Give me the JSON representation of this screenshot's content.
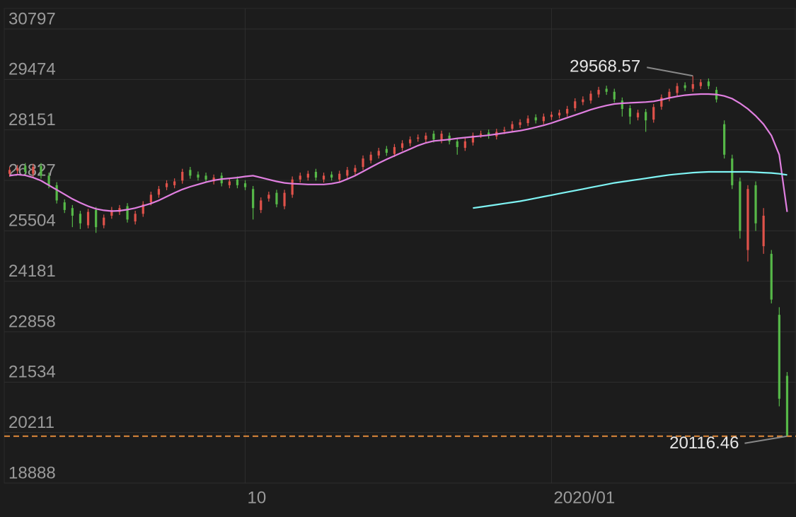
{
  "chart_data": {
    "type": "candlestick",
    "categories": [
      null,
      null,
      null,
      null,
      null,
      null,
      null,
      null,
      null,
      null,
      null,
      null,
      null,
      null,
      null,
      null,
      null,
      null,
      null,
      null,
      null,
      null,
      null,
      null,
      null,
      null,
      null,
      null,
      null,
      null,
      "10",
      null,
      null,
      null,
      null,
      null,
      null,
      null,
      null,
      null,
      null,
      null,
      null,
      null,
      null,
      null,
      null,
      null,
      null,
      null,
      null,
      null,
      null,
      null,
      null,
      null,
      null,
      null,
      null,
      null,
      null,
      null,
      null,
      null,
      null,
      null,
      null,
      null,
      null,
      "2020/01",
      null,
      null,
      null,
      null,
      null,
      null,
      null,
      null,
      null,
      null,
      null,
      null,
      null,
      null,
      null,
      null,
      null,
      null,
      null,
      null,
      null,
      null,
      null,
      null,
      null,
      null,
      null,
      null,
      null,
      null
    ],
    "open": [
      27000,
      27080,
      27200,
      27000,
      27200,
      26950,
      26700,
      26250,
      26100,
      25950,
      25650,
      26050,
      25650,
      25900,
      26000,
      26150,
      25750,
      25950,
      26250,
      26450,
      26650,
      26700,
      26820,
      27100,
      26980,
      26950,
      26800,
      26950,
      26700,
      26850,
      26750,
      26600,
      26050,
      26350,
      26500,
      26150,
      26450,
      26850,
      26900,
      27050,
      26850,
      26980,
      26850,
      26950,
      27050,
      27180,
      27350,
      27480,
      27650,
      27520,
      27680,
      27800,
      27920,
      27900,
      28050,
      27880,
      28000,
      27850,
      27680,
      27820,
      28020,
      28080,
      27980,
      28120,
      28180,
      28280,
      28330,
      28480,
      28380,
      28490,
      28530,
      28580,
      28720,
      28880,
      28920,
      29080,
      29230,
      29150,
      28920,
      28720,
      28480,
      28620,
      28420,
      28760,
      28980,
      29120,
      29320,
      29230,
      29300,
      29420,
      29200,
      28300,
      27400,
      26800,
      25000,
      26700,
      25100,
      24900,
      23300,
      21700
    ],
    "high": [
      27180,
      27230,
      27280,
      27260,
      27280,
      27030,
      26780,
      26330,
      26180,
      26030,
      26080,
      26130,
      25930,
      26130,
      26180,
      26230,
      26030,
      26280,
      26530,
      26680,
      26830,
      26880,
      27130,
      27180,
      27060,
      27030,
      26980,
      27030,
      26880,
      26930,
      26830,
      26680,
      26380,
      26530,
      26580,
      26580,
      26930,
      27030,
      27080,
      27130,
      27030,
      27060,
      27080,
      27180,
      27230,
      27480,
      27580,
      27680,
      27730,
      27780,
      27880,
      27980,
      28030,
      28080,
      28130,
      28130,
      28080,
      27930,
      27930,
      28080,
      28130,
      28160,
      28180,
      28230,
      28380,
      28430,
      28530,
      28560,
      28580,
      28630,
      28680,
      28780,
      28980,
      29030,
      29180,
      29280,
      29310,
      29230,
      29000,
      28800,
      28680,
      28700,
      28830,
      29080,
      29230,
      29380,
      29400,
      29568.57,
      29480,
      29500,
      29280,
      28400,
      27500,
      26900,
      26700,
      26800,
      26100,
      25000,
      23500,
      21800
    ],
    "low": [
      26920,
      27000,
      26970,
      26920,
      26870,
      26620,
      26220,
      25970,
      25600,
      25550,
      25570,
      25450,
      25570,
      25820,
      25920,
      25720,
      25670,
      25870,
      26170,
      26370,
      26570,
      26620,
      26740,
      26870,
      26820,
      26770,
      26720,
      26670,
      26620,
      26620,
      26570,
      25800,
      25970,
      26270,
      26120,
      26070,
      26370,
      26770,
      26820,
      26820,
      26770,
      26820,
      26770,
      26870,
      26970,
      27100,
      27270,
      27400,
      27470,
      27440,
      27600,
      27720,
      27840,
      27820,
      27820,
      27800,
      27770,
      27500,
      27600,
      27740,
      27940,
      27920,
      27900,
      28040,
      28100,
      28200,
      28250,
      28320,
      28300,
      28410,
      28450,
      28500,
      28640,
      28800,
      28840,
      29000,
      29070,
      28870,
      28500,
      28300,
      28400,
      28100,
      28340,
      28680,
      28900,
      29040,
      29170,
      29150,
      29220,
      29220,
      28870,
      27400,
      26600,
      25300,
      24700,
      25500,
      24900,
      23600,
      20900,
      20116.46
    ],
    "close": [
      27100,
      27150,
      27050,
      27180,
      26950,
      26700,
      26300,
      26050,
      25900,
      25700,
      26000,
      25600,
      25850,
      26050,
      26100,
      25800,
      25950,
      26200,
      26450,
      26600,
      26750,
      26800,
      27050,
      26950,
      26900,
      26850,
      26900,
      26750,
      26800,
      26700,
      26650,
      26100,
      26300,
      26450,
      26200,
      26500,
      26850,
      26950,
      27000,
      26900,
      26950,
      26900,
      27000,
      27100,
      27150,
      27400,
      27500,
      27600,
      27550,
      27700,
      27800,
      27900,
      27950,
      28000,
      27900,
      28050,
      27850,
      27700,
      27850,
      28000,
      28050,
      28000,
      28100,
      28150,
      28300,
      28350,
      28450,
      28400,
      28500,
      28550,
      28600,
      28700,
      28900,
      28950,
      29100,
      29200,
      29150,
      28950,
      28700,
      28500,
      28600,
      28400,
      28750,
      29000,
      29150,
      29300,
      29250,
      29350,
      29400,
      29300,
      28950,
      27500,
      26700,
      25500,
      26600,
      25700,
      25900,
      23700,
      21100,
      20116.46
    ],
    "up_color": "#e0524a",
    "down_color": "#56b848",
    "series": [
      {
        "color": "#e07fe0",
        "values": [
          26950,
          26980,
          26960,
          26900,
          26820,
          26700,
          26580,
          26460,
          26340,
          26240,
          26150,
          26080,
          26040,
          26020,
          26030,
          26060,
          26100,
          26160,
          26220,
          26300,
          26400,
          26500,
          26590,
          26660,
          26720,
          26780,
          26830,
          26860,
          26880,
          26900,
          26930,
          26950,
          26900,
          26850,
          26800,
          26760,
          26740,
          26730,
          26720,
          26720,
          26720,
          26740,
          26780,
          26860,
          26950,
          27060,
          27170,
          27280,
          27380,
          27470,
          27560,
          27650,
          27740,
          27810,
          27860,
          27880,
          27900,
          27930,
          27950,
          27970,
          27990,
          28010,
          28040,
          28070,
          28100,
          28130,
          28170,
          28220,
          28270,
          28330,
          28400,
          28470,
          28540,
          28610,
          28680,
          28740,
          28790,
          28830,
          28850,
          28860,
          28870,
          28880,
          28900,
          28940,
          28990,
          29030,
          29060,
          29080,
          29090,
          29090,
          29080,
          29040,
          28970,
          28850,
          28700,
          28520,
          28300,
          28000,
          27500,
          26000
        ]
      },
      {
        "color": "#7ff4f4",
        "values": [
          null,
          null,
          null,
          null,
          null,
          null,
          null,
          null,
          null,
          null,
          null,
          null,
          null,
          null,
          null,
          null,
          null,
          null,
          null,
          null,
          null,
          null,
          null,
          null,
          null,
          null,
          null,
          null,
          null,
          null,
          null,
          null,
          null,
          null,
          null,
          null,
          null,
          null,
          null,
          null,
          null,
          null,
          null,
          null,
          null,
          null,
          null,
          null,
          null,
          null,
          null,
          null,
          null,
          null,
          null,
          null,
          null,
          null,
          null,
          26100,
          26130,
          26160,
          26190,
          26220,
          26250,
          26280,
          26320,
          26360,
          26400,
          26440,
          26480,
          26520,
          26560,
          26600,
          26640,
          26680,
          26720,
          26760,
          26790,
          26820,
          26850,
          26880,
          26910,
          26940,
          26970,
          26990,
          27010,
          27030,
          27040,
          27050,
          27050,
          27050,
          27050,
          27050,
          27050,
          27040,
          27030,
          27020,
          27000,
          26970
        ]
      }
    ],
    "ylim": [
      18888,
      31335
    ],
    "yticks": [
      18888,
      20211,
      21534,
      22858,
      24181,
      25504,
      26827,
      28151,
      29474,
      30797
    ],
    "grid": true,
    "low_line_color": "#e08a3a"
  }
}
